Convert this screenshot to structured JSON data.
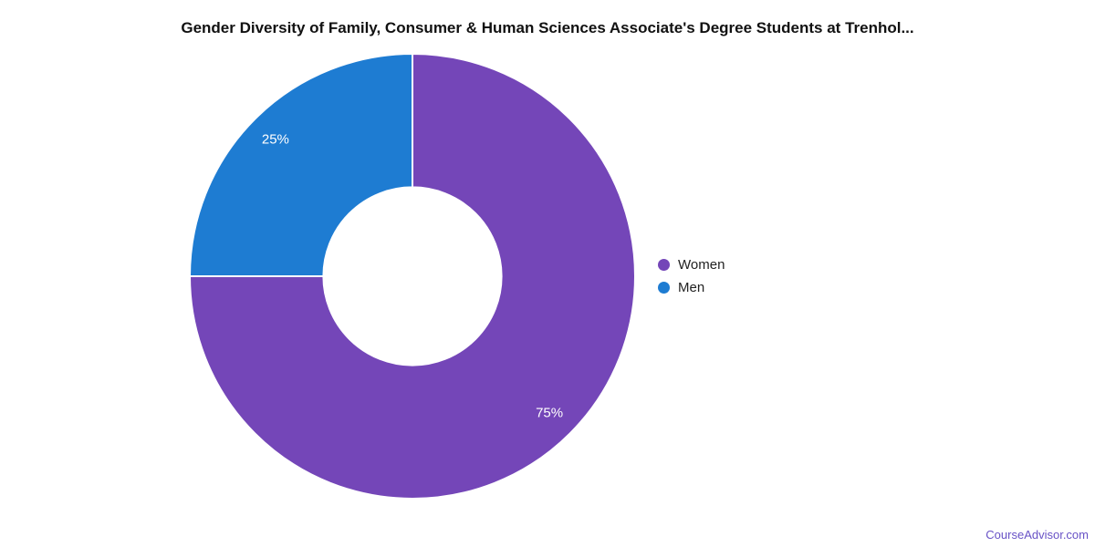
{
  "page": {
    "background": "#ffffff",
    "footer": {
      "text": "CourseAdvisor.com",
      "color": "#6852c6"
    }
  },
  "chart_data": {
    "type": "pie",
    "donut": true,
    "title": "Gender Diversity of Family, Consumer & Human Sciences Associate's Degree Students at Trenhol...",
    "start_angle_deg": 0,
    "direction": "clockwise",
    "legend_position": "right",
    "inner_radius_ratio": 0.4,
    "slice_border_color": "#ffffff",
    "slice_label_color": "#ffffff",
    "slices": [
      {
        "label": "Women",
        "value": 75,
        "display": "75%",
        "color": "#7446b8"
      },
      {
        "label": "Men",
        "value": 25,
        "display": "25%",
        "color": "#1e7cd2"
      }
    ]
  }
}
